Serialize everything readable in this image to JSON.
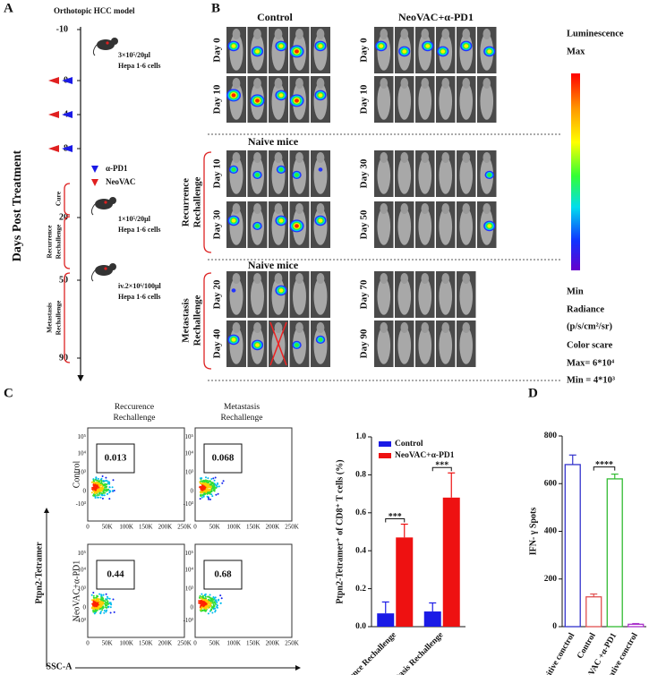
{
  "panel_labels": [
    "A",
    "B",
    "C",
    "D"
  ],
  "timeline": {
    "title": "Orthotopic HCC model",
    "axis_label": "Days Post Treatment",
    "days": [
      -10,
      0,
      4,
      8,
      20,
      50,
      90
    ],
    "inoculations": [
      [
        "3×10⁵/20μl",
        "Hepa 1-6 cells"
      ],
      [
        "1×10⁵/20μl",
        "Hepa 1-6 cells"
      ],
      [
        "iv.2×10⁶/100μl",
        "Hepa 1-6 cells"
      ]
    ],
    "legend": [
      "α-PD1",
      "NeoVAC"
    ],
    "phases": [
      "Cure",
      "Recurrence",
      "Rechallenge",
      "Metastasis",
      "Rechallenge"
    ]
  },
  "imaging": {
    "groups": [
      "Control",
      "NeoVAC+α-PD1"
    ],
    "naive": "Naive mice",
    "rows": [
      {
        "left": "Day 0",
        "right": "Day 0"
      },
      {
        "left": "Day 10",
        "right": "Day 10"
      },
      {
        "left": "Day 10",
        "right": "Day 30"
      },
      {
        "left": "Day 30",
        "right": "Day 50"
      },
      {
        "left": "Day 20",
        "right": "Day 70"
      },
      {
        "left": "Day 40",
        "right": "Day 90"
      }
    ],
    "rechallenge": [
      [
        "Recurrence",
        "Rechallenge"
      ],
      [
        "Metastasis",
        "Rechallenge"
      ]
    ],
    "colorbar": [
      "Luminescence",
      "Max",
      "Min",
      "Radiance",
      "(p/s/cm²/sr)",
      "Color scare",
      "Max= 6*10⁴",
      "Min = 4*10³"
    ]
  },
  "flow": {
    "columns": [
      [
        "Reccurence",
        "Rechallenge"
      ],
      [
        "Metastasis",
        "Rechallenge"
      ]
    ],
    "rows": [
      "Control",
      "NeoVAC+α-PD1"
    ],
    "gates": [
      [
        0.013,
        0.068
      ],
      [
        0.44,
        0.68
      ]
    ],
    "xticks": [
      "0",
      "50K",
      "100K",
      "150K",
      "200K",
      "250K"
    ],
    "yticks": [
      "-10³",
      "0",
      "10³",
      "10⁴",
      "10⁵"
    ],
    "ylabel": "Ptpn2-Tetramer",
    "xlabel": "SSC-A"
  },
  "chart_data": [
    {
      "type": "bar",
      "ylabel": "Ptpn2-Tetramer⁺ of CD8⁺ T cells (%)",
      "categories": [
        "Recurrence Rechallenge",
        "Metastasis Rechallenge"
      ],
      "series": [
        {
          "name": "Control",
          "color": "#1a1ae6",
          "values": [
            0.07,
            0.08
          ],
          "errors": [
            0.06,
            0.045
          ]
        },
        {
          "name": "NeoVAC+α-PD1",
          "color": "#ee1111",
          "values": [
            0.47,
            0.68
          ],
          "errors": [
            0.07,
            0.13
          ]
        }
      ],
      "ylim": [
        0,
        1
      ],
      "yticks": [
        {
          "value": 0,
          "label": "0.0"
        },
        {
          "value": 0.2,
          "label": "0.2"
        },
        {
          "value": 0.4,
          "label": "0.4"
        },
        {
          "value": 0.6,
          "label": "0.6"
        },
        {
          "value": 0.8,
          "label": "0.8"
        },
        {
          "value": 1,
          "label": "1.0"
        }
      ],
      "significance": [
        "***",
        "***"
      ],
      "legend": "upper left"
    },
    {
      "type": "bar",
      "style": "outline",
      "ylabel": "IFN- γ Spots",
      "categories": [
        "Positive conctrol",
        "Control",
        "NeoVAC +α-PD1",
        "Negative conctrol"
      ],
      "values": [
        680,
        125,
        620,
        10
      ],
      "errors": [
        40,
        12,
        20,
        3
      ],
      "colors": [
        "#3333cc",
        "#e05050",
        "#33bb33",
        "#aa33cc"
      ],
      "ylim": [
        0,
        800
      ],
      "yticks": [
        0,
        200,
        400,
        600,
        800
      ],
      "significance": [
        "****"
      ]
    }
  ]
}
